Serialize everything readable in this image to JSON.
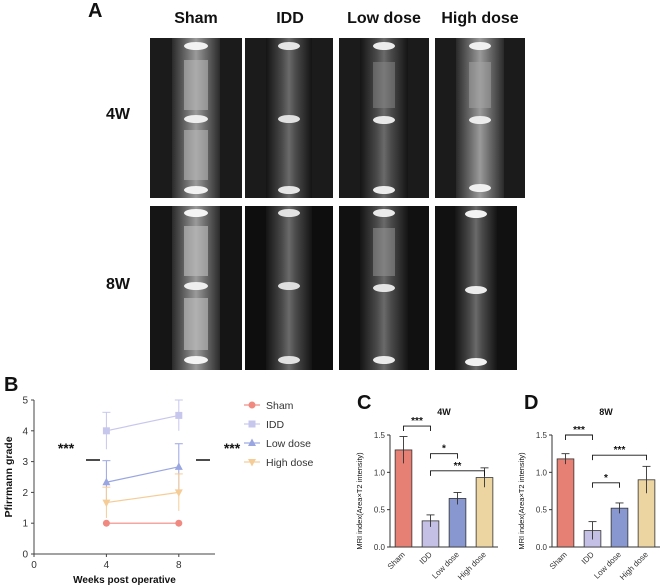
{
  "panel_a": {
    "letter": "A",
    "columns": [
      "Sham",
      "IDD",
      "Low dose",
      "High dose"
    ],
    "rows": [
      "4W",
      "8W"
    ]
  },
  "panel_b": {
    "letter": "B",
    "colors": {
      "Sham": "#f08a80",
      "IDD": "#c7c7ee",
      "Low dose": "#9aa6e2",
      "High dose": "#f5cc96"
    }
  },
  "panel_c": {
    "letter": "C",
    "colors": [
      "#e68074",
      "#c4bfe4",
      "#8997d0",
      "#ecd5a0"
    ]
  },
  "panel_d": {
    "letter": "D",
    "colors": [
      "#e68074",
      "#c4bfe4",
      "#8997d0",
      "#ecd5a0"
    ]
  },
  "chart_data": [
    {
      "type": "line",
      "ylabel": "Pfirrmann grade",
      "xlabel": "Weeks post operative",
      "x": [
        4,
        8
      ],
      "xlim": [
        0,
        10
      ],
      "xticks": [
        "0",
        "4",
        "8"
      ],
      "ylim": [
        0,
        5
      ],
      "yticks": [
        "0",
        "1",
        "2",
        "3",
        "4",
        "5"
      ],
      "legend_position": "right",
      "series": [
        {
          "name": "Sham",
          "values": [
            1.0,
            1.0
          ],
          "errors": [
            0,
            0
          ]
        },
        {
          "name": "IDD",
          "values": [
            4.0,
            4.5
          ],
          "errors": [
            0.6,
            0.5
          ]
        },
        {
          "name": "Low dose",
          "values": [
            2.33,
            2.83
          ],
          "errors": [
            0.7,
            0.75
          ]
        },
        {
          "name": "High dose",
          "values": [
            1.67,
            2.0
          ],
          "errors": [
            0.5,
            0.6
          ]
        }
      ],
      "annotations": [
        "***",
        "***"
      ]
    },
    {
      "type": "bar",
      "title": "4W",
      "ylabel": "MRI index(Area×T2 intensity)",
      "categories": [
        "Sham",
        "IDD",
        "Low dose",
        "High dose"
      ],
      "values": [
        1.3,
        0.35,
        0.65,
        0.93
      ],
      "errors": [
        0.18,
        0.08,
        0.08,
        0.13
      ],
      "ylim": [
        0,
        1.5
      ],
      "yticks": [
        "0.0",
        "0.5",
        "1.0",
        "1.5"
      ],
      "significance": [
        {
          "from": "Sham",
          "to": "IDD",
          "label": "***"
        },
        {
          "from": "IDD",
          "to": "Low dose",
          "label": "*"
        },
        {
          "from": "IDD",
          "to": "High dose",
          "label": "**"
        }
      ]
    },
    {
      "type": "bar",
      "title": "8W",
      "ylabel": "MRI index(Area×T2 intensity)",
      "categories": [
        "Sham",
        "IDD",
        "Low dose",
        "High dose"
      ],
      "values": [
        1.18,
        0.22,
        0.52,
        0.9
      ],
      "errors": [
        0.07,
        0.12,
        0.07,
        0.18
      ],
      "ylim": [
        0,
        1.5
      ],
      "yticks": [
        "0.0",
        "0.5",
        "1.0",
        "1.5"
      ],
      "significance": [
        {
          "from": "Sham",
          "to": "IDD",
          "label": "***"
        },
        {
          "from": "IDD",
          "to": "Low dose",
          "label": "*"
        },
        {
          "from": "IDD",
          "to": "High dose",
          "label": "***"
        }
      ]
    }
  ]
}
